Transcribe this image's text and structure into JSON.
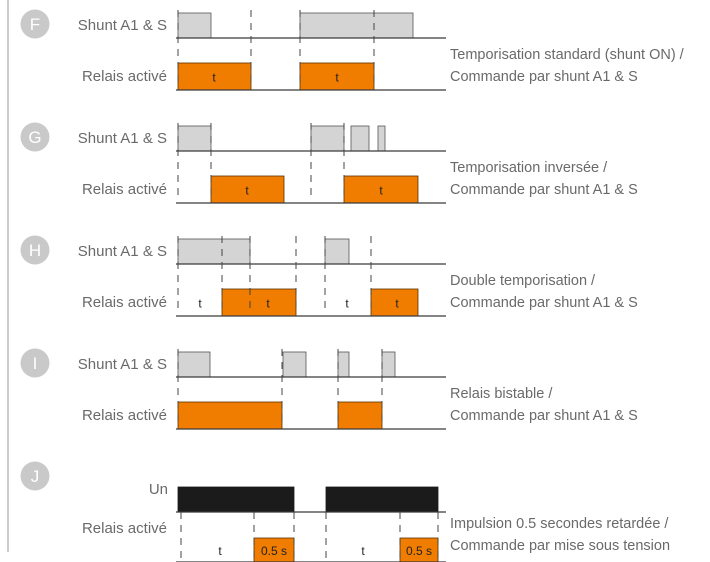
{
  "colors": {
    "badge": "#c9c9c9",
    "shunt_pulse": "#d4d4d4",
    "relay_pulse": "#f07c00",
    "supply_pulse": "#1b1b1b",
    "line": "#3a3a3a",
    "text": "#6a6a6a"
  },
  "modes": [
    {
      "letter": "F",
      "input_label": "Shunt A1 & S",
      "output_label": "Relais activé",
      "description": [
        "Temporisation standard (shunt ON) /",
        "Commande par shunt A1 & S"
      ],
      "relay_time_labels": [
        "t",
        "t"
      ],
      "gap_time_labels": []
    },
    {
      "letter": "G",
      "input_label": "Shunt A1 & S",
      "output_label": "Relais activé",
      "description": [
        "Temporisation inversée /",
        "Commande par shunt A1 & S"
      ],
      "relay_time_labels": [
        "t",
        "t"
      ],
      "gap_time_labels": []
    },
    {
      "letter": "H",
      "input_label": "Shunt A1 & S",
      "output_label": "Relais activé",
      "description": [
        "Double temporisation /",
        "Commande par shunt A1 & S"
      ],
      "relay_time_labels": [
        "t",
        "t"
      ],
      "gap_time_labels": [
        "t",
        "t"
      ]
    },
    {
      "letter": "I",
      "input_label": "Shunt A1 & S",
      "output_label": "Relais activé",
      "description": [
        "Relais bistable /",
        "Commande par shunt A1 & S"
      ],
      "relay_time_labels": [],
      "gap_time_labels": []
    },
    {
      "letter": "J",
      "input_label": "Un",
      "output_label": "Relais activé",
      "description": [
        "Impulsion 0.5 secondes retardée /",
        "Commande par mise sous tension"
      ],
      "relay_time_labels": [
        "0.5 s",
        "0.5 s"
      ],
      "gap_time_labels": [
        "t",
        "t"
      ]
    }
  ]
}
